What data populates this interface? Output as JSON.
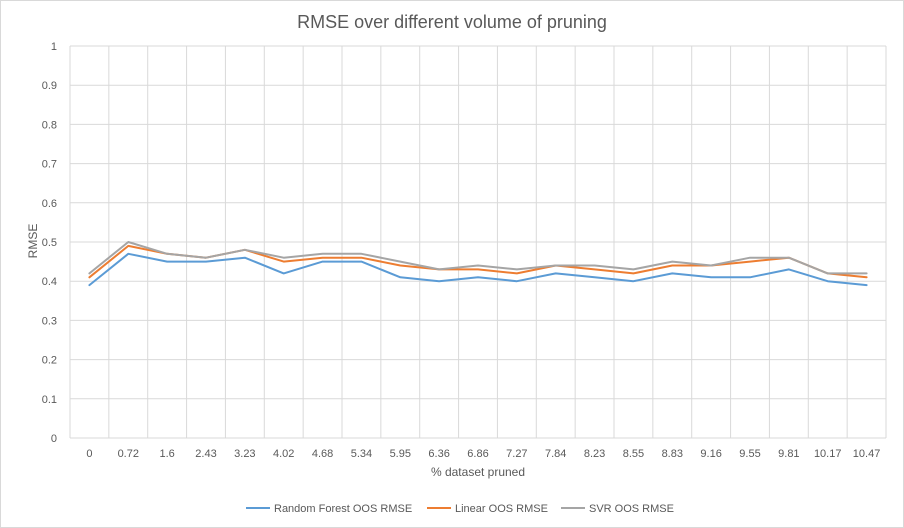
{
  "chart_data": {
    "type": "line",
    "title": "RMSE over different volume of pruning",
    "xlabel": "% dataset pruned",
    "ylabel": "RMSE",
    "ylim": [
      0,
      1
    ],
    "yticks": [
      "0",
      "0.1",
      "0.2",
      "0.3",
      "0.4",
      "0.5",
      "0.6",
      "0.7",
      "0.8",
      "0.9",
      "1"
    ],
    "grid": "vertical and horizontal",
    "legend_position": "bottom",
    "categories": [
      "0",
      "0.72",
      "1.6",
      "2.43",
      "3.23",
      "4.02",
      "4.68",
      "5.34",
      "5.95",
      "6.36",
      "6.86",
      "7.27",
      "7.84",
      "8.23",
      "8.55",
      "8.83",
      "9.16",
      "9.55",
      "9.81",
      "10.17",
      "10.47"
    ],
    "series": [
      {
        "name": "Random Forest OOS RMSE",
        "color": "#5b9bd5",
        "values": [
          0.39,
          0.47,
          0.45,
          0.45,
          0.46,
          0.42,
          0.45,
          0.45,
          0.41,
          0.4,
          0.41,
          0.4,
          0.42,
          0.41,
          0.4,
          0.42,
          0.41,
          0.41,
          0.43,
          0.4,
          0.39
        ]
      },
      {
        "name": "Linear OOS RMSE",
        "color": "#ed7d31",
        "values": [
          0.41,
          0.49,
          0.47,
          0.46,
          0.48,
          0.45,
          0.46,
          0.46,
          0.44,
          0.43,
          0.43,
          0.42,
          0.44,
          0.43,
          0.42,
          0.44,
          0.44,
          0.45,
          0.46,
          0.42,
          0.41
        ]
      },
      {
        "name": "SVR OOS RMSE",
        "color": "#a5a5a5",
        "values": [
          0.42,
          0.5,
          0.47,
          0.46,
          0.48,
          0.46,
          0.47,
          0.47,
          0.45,
          0.43,
          0.44,
          0.43,
          0.44,
          0.44,
          0.43,
          0.45,
          0.44,
          0.46,
          0.46,
          0.42,
          0.42
        ]
      }
    ]
  }
}
